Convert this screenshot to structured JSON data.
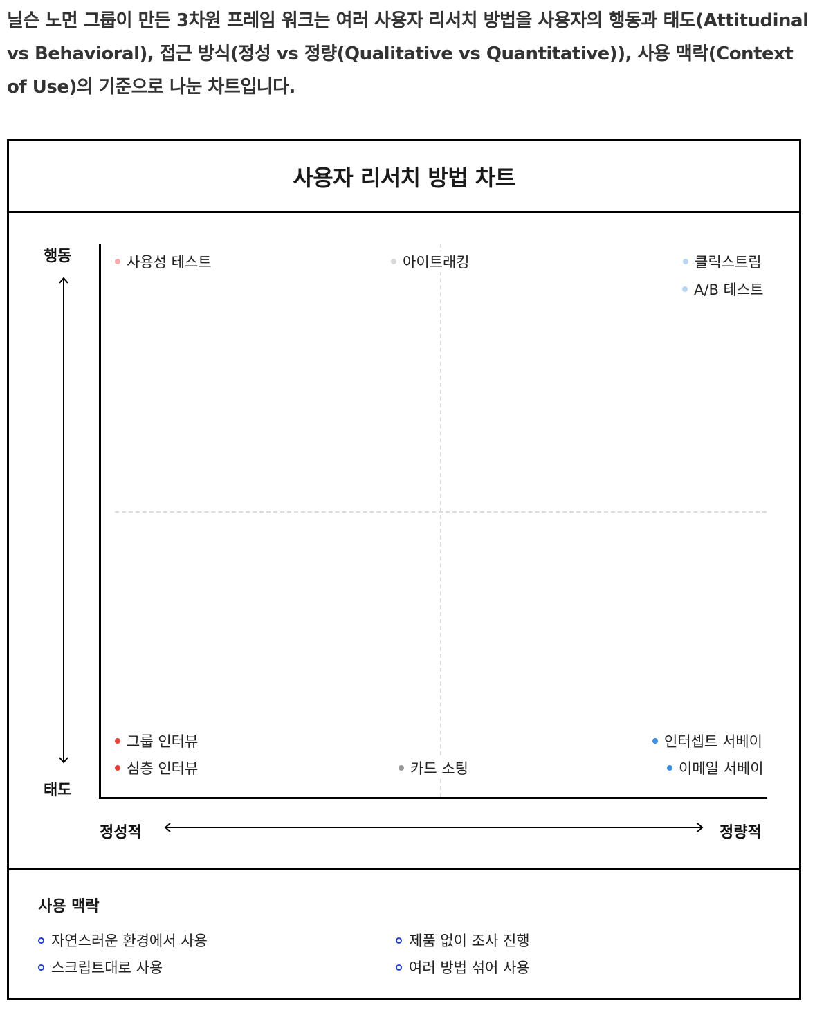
{
  "intro_text": "닐슨 노먼 그룹이 만든 3차원 프레임 워크는 여러 사용자 리서치 방법을 사용자의 행동과 태도(Attitudinal vs Behavioral), 접근 방식(정성 vs 정량(Qualitative vs Quantitative)), 사용 맥락(Context of Use)의 기준으로 나눈 차트입니다.",
  "chart": {
    "title": "사용자 리서치 방법 차트",
    "y_top_label": "행동",
    "y_bottom_label": "태도",
    "x_left_label": "정성적",
    "x_right_label": "정량적",
    "methods": {
      "usability_test": "사용성 테스트",
      "eye_tracking": "아이트래킹",
      "clickstream": "클릭스트림",
      "ab_test": "A/B 테스트",
      "group_interview": "그룹 인터뷰",
      "depth_interview": "심층 인터뷰",
      "card_sorting": "카드 소팅",
      "intercept_survey": "인터셉트 서베이",
      "email_survey": "이메일 서베이"
    }
  },
  "context": {
    "title": "사용 맥락",
    "items": {
      "natural": "자연스러운 환경에서 사용",
      "scripted": "스크립트대로 사용",
      "not_using": "제품 없이 조사 진행",
      "hybrid": "여러 방법 섞어 사용"
    }
  },
  "colors": {
    "light_red": "#f2a9a9",
    "light_gray": "#d9d9d9",
    "light_blue": "#b9d7f5",
    "red": "#e8403a",
    "gray": "#9a9a9a",
    "blue": "#3d8fe8",
    "context_ring": "#1f3cd6"
  }
}
